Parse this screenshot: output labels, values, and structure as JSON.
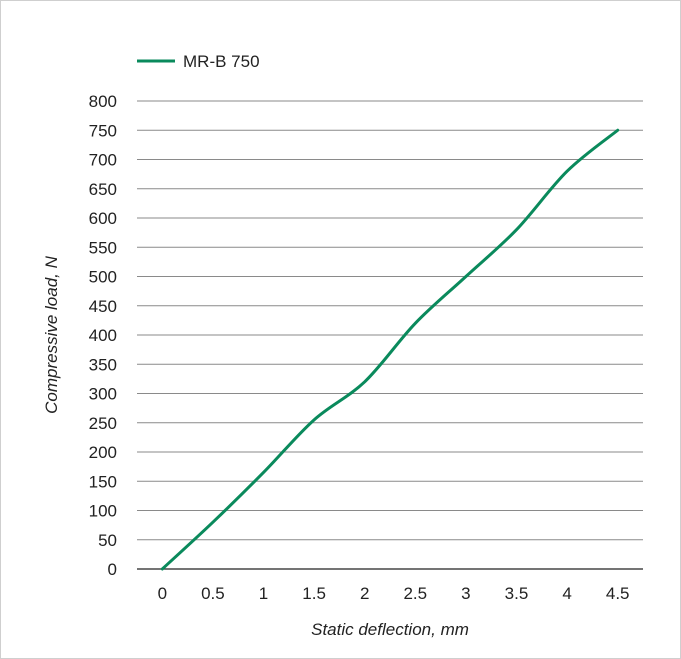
{
  "chart_data": {
    "type": "line",
    "title": "",
    "xlabel": "Static deflection, mm",
    "ylabel": "Compressive load, N",
    "xlim": [
      -0.25,
      4.75
    ],
    "ylim": [
      0,
      800
    ],
    "x_ticks": [
      "0",
      "0.5",
      "1",
      "1.5",
      "2",
      "2.5",
      "3",
      "3.5",
      "4",
      "4.5"
    ],
    "y_ticks": [
      "0",
      "50",
      "100",
      "150",
      "200",
      "250",
      "300",
      "350",
      "400",
      "450",
      "500",
      "550",
      "600",
      "650",
      "700",
      "750",
      "800"
    ],
    "grid": "horizontal",
    "legend_position": "top-left",
    "series": [
      {
        "name": "MR-B 750",
        "color": "#0a8a5c",
        "x": [
          0,
          0.5,
          1,
          1.5,
          2,
          2.5,
          3,
          3.5,
          4,
          4.5
        ],
        "y": [
          0,
          80,
          165,
          255,
          320,
          420,
          500,
          580,
          680,
          750
        ]
      }
    ]
  }
}
